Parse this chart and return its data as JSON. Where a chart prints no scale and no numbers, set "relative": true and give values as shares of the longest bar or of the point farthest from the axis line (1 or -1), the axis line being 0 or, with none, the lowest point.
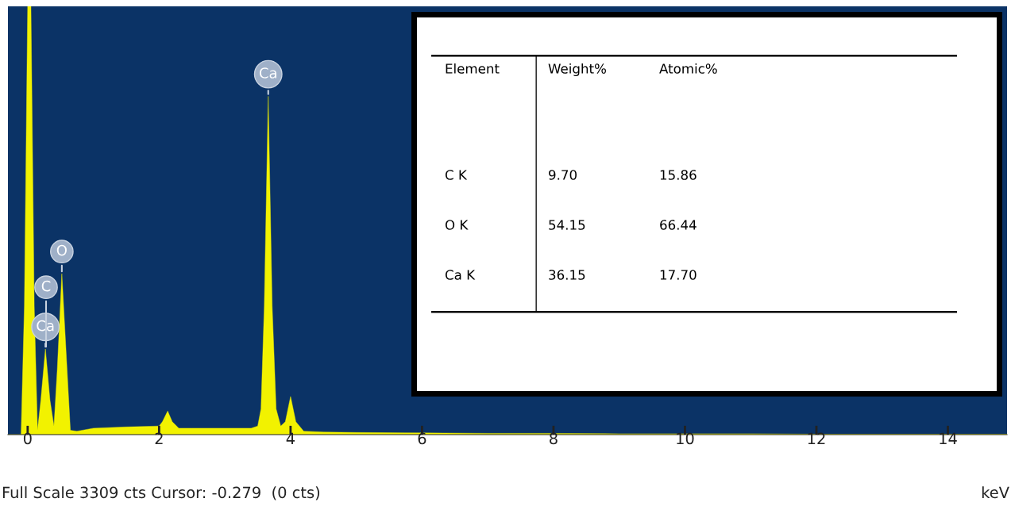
{
  "chart_data": [
    {
      "type": "area",
      "relative": true,
      "xlabel": "keV",
      "color": "#f2f200",
      "xlim": [
        -0.3,
        14.9
      ],
      "xticks": [
        0,
        2,
        4,
        6,
        8,
        10,
        12,
        14
      ],
      "x": [
        -0.3,
        -0.1,
        -0.05,
        0.0,
        0.05,
        0.1,
        0.15,
        0.2,
        0.27,
        0.34,
        0.4,
        0.45,
        0.52,
        0.6,
        0.65,
        0.75,
        1.0,
        1.5,
        2.0,
        2.05,
        2.13,
        2.2,
        2.3,
        2.5,
        3.0,
        3.4,
        3.5,
        3.55,
        3.6,
        3.66,
        3.72,
        3.78,
        3.85,
        3.92,
        4.0,
        4.08,
        4.2,
        4.5,
        5.0,
        6.0,
        7.0,
        8.0,
        9.0,
        10.0,
        11.0,
        12.0,
        13.0,
        14.0,
        14.9
      ],
      "values": [
        0,
        0,
        0.3,
        1,
        1,
        0.3,
        0.01,
        0.08,
        0.2,
        0.08,
        0.02,
        0.15,
        0.376,
        0.15,
        0.01,
        0.008,
        0.015,
        0.018,
        0.02,
        0.03,
        0.055,
        0.03,
        0.015,
        0.015,
        0.015,
        0.015,
        0.02,
        0.06,
        0.3,
        0.79,
        0.3,
        0.06,
        0.02,
        0.03,
        0.089,
        0.03,
        0.008,
        0.006,
        0.005,
        0.004,
        0.003,
        0.003,
        0.002,
        0.002,
        0.002,
        0.001,
        0.001,
        0.001,
        0.001
      ],
      "annotations": [
        {
          "text": "Ca",
          "x": 3.66,
          "y": 0.79
        },
        {
          "text": "O",
          "x": 0.52,
          "y": 0.376
        },
        {
          "text": "Ca",
          "x": 0.27,
          "y": 0.2
        },
        {
          "text": "C",
          "x": 0.28,
          "y": 0.2
        },
        "Full Scale 3309 cts Cursor: -0.279  (0 cts)"
      ]
    },
    {
      "type": "other",
      "categories": [
        "Element",
        "Weight%",
        "Atomic%"
      ],
      "annotations": [
        "C K",
        "9.70",
        "15.86",
        "O K",
        "54.15",
        "66.44",
        "Ca K",
        "36.15",
        "17.70"
      ]
    }
  ]
}
